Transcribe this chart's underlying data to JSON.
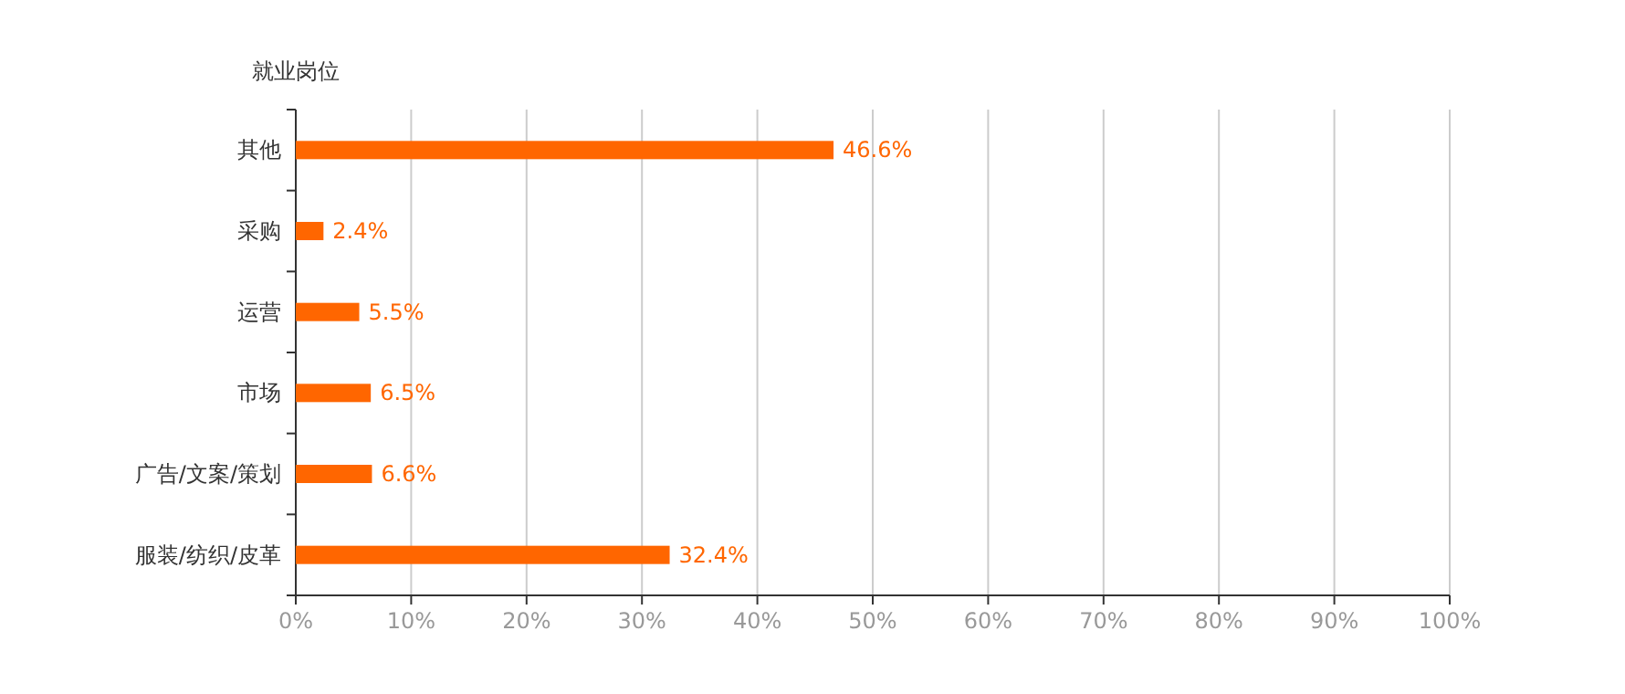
{
  "chart_data": {
    "type": "bar",
    "orientation": "horizontal",
    "ylabel": "就业岗位",
    "categories": [
      "其他",
      "采购",
      "运营",
      "市场",
      "广告/文案/策划",
      "服装/纺织/皮革"
    ],
    "values": [
      46.6,
      2.4,
      5.5,
      6.5,
      6.6,
      32.4
    ],
    "value_labels": [
      "46.6%",
      "2.4%",
      "5.5%",
      "6.5%",
      "6.6%",
      "32.4%"
    ],
    "color": "#ff6600",
    "xlim": [
      0,
      100
    ],
    "xticks": [
      {
        "value": 0,
        "label": "0%"
      },
      {
        "value": 10,
        "label": "10%"
      },
      {
        "value": 20,
        "label": "20%"
      },
      {
        "value": 30,
        "label": "30%"
      },
      {
        "value": 40,
        "label": "40%"
      },
      {
        "value": 50,
        "label": "50%"
      },
      {
        "value": 60,
        "label": "60%"
      },
      {
        "value": 70,
        "label": "70%"
      },
      {
        "value": 80,
        "label": "80%"
      },
      {
        "value": 90,
        "label": "90%"
      },
      {
        "value": 100,
        "label": "100%"
      }
    ],
    "grid": "x"
  }
}
